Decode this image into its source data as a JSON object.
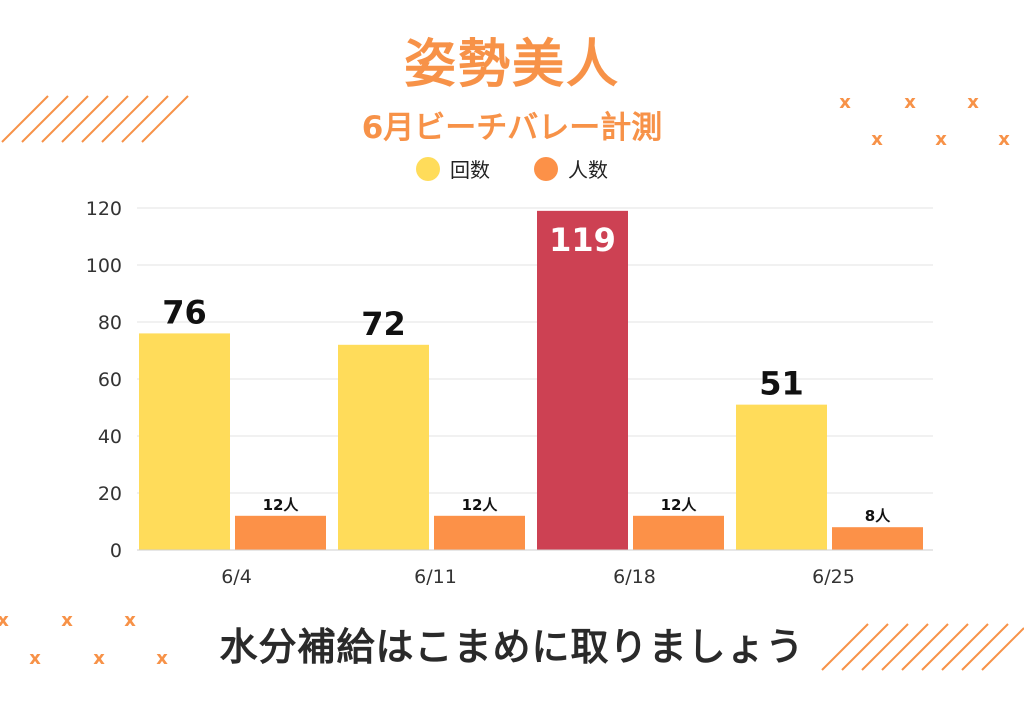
{
  "title": "姿勢美人",
  "subtitle": "6月ビーチバレー計測",
  "footer": "水分補給はこまめに取りましょう",
  "colors": {
    "title": "#F79248",
    "count_bar": "#FFDC5A",
    "highlight_bar": "#CD4153",
    "people_bar": "#FC9148",
    "grid": "#e3e3e3",
    "deco": "#F79248"
  },
  "legend": [
    {
      "label": "回数",
      "color": "#FFDC5A"
    },
    {
      "label": "人数",
      "color": "#FC9148"
    }
  ],
  "chart_data": {
    "type": "bar",
    "categories": [
      "6/4",
      "6/11",
      "6/18",
      "6/25"
    ],
    "series": [
      {
        "name": "回数",
        "values": [
          76,
          72,
          119,
          51
        ],
        "labels": [
          "76",
          "72",
          "119",
          "51"
        ],
        "highlight_index": 2
      },
      {
        "name": "人数",
        "values": [
          12,
          12,
          12,
          8
        ],
        "labels": [
          "12人",
          "12人",
          "12人",
          "8人"
        ]
      }
    ],
    "ylim": [
      0,
      120
    ],
    "yticks": [
      0,
      20,
      40,
      60,
      80,
      100,
      120
    ],
    "grid": true,
    "legend_position": "top-center"
  }
}
